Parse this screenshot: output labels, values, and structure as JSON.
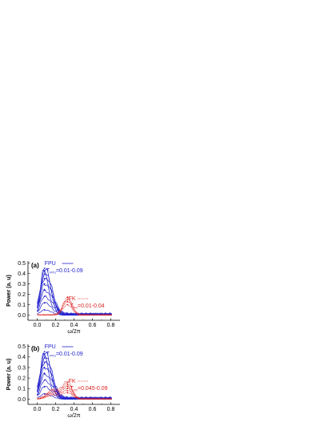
{
  "chart_data": [
    {
      "type": "line",
      "panel": "(a)",
      "xlabel": "ω/2π",
      "ylabel": "Power (a. u)",
      "xlim": [
        -0.1,
        0.9
      ],
      "ylim": [
        -0.05,
        0.52
      ],
      "xticks": [
        "0.0",
        "0.2",
        "0.4",
        "0.6",
        "0.8"
      ],
      "yticks": [
        "0.0",
        "0.1",
        "0.2",
        "0.3",
        "0.4",
        "0.5"
      ],
      "legend": [
        {
          "label": "FPU",
          "range_prefix": "T",
          "range_sub": "FPU",
          "range": "=0.01-0.09",
          "color": "#2222cc",
          "style": "solid"
        },
        {
          "label": "FK",
          "range_prefix": "T",
          "range_sub": "FK",
          "range": "=0.01-0.04",
          "color": "#dd2222",
          "style": "dotted"
        }
      ],
      "series": [
        {
          "group": "FPU",
          "color": "#2222cc",
          "peak_x": 0.08,
          "heights": [
            0.05,
            0.12,
            0.18,
            0.24,
            0.3,
            0.35,
            0.39,
            0.42,
            0.45
          ]
        },
        {
          "group": "FK",
          "color": "#dd2222",
          "peak_x": 0.33,
          "heights": [
            0.1,
            0.13,
            0.15,
            0.17
          ]
        }
      ]
    },
    {
      "type": "line",
      "panel": "(b)",
      "xlabel": "ω/2π",
      "ylabel": "Power (a. u)",
      "xlim": [
        -0.1,
        0.9
      ],
      "ylim": [
        -0.05,
        0.52
      ],
      "xticks": [
        "0.0",
        "0.2",
        "0.4",
        "0.6",
        "0.8"
      ],
      "yticks": [
        "0.0",
        "0.1",
        "0.2",
        "0.3",
        "0.4",
        "0.5"
      ],
      "legend": [
        {
          "label": "FPU",
          "range_prefix": "T",
          "range_sub": "FPU",
          "range": "=0.01-0.09",
          "color": "#2222cc",
          "style": "solid"
        },
        {
          "label": "FK",
          "range_prefix": "T",
          "range_sub": "FK",
          "range": "=0.045-0.09",
          "color": "#dd2222",
          "style": "dotted"
        }
      ],
      "series": [
        {
          "group": "FPU",
          "color": "#2222cc",
          "peak_x": 0.08,
          "heights": [
            0.05,
            0.12,
            0.18,
            0.24,
            0.3,
            0.35,
            0.39,
            0.42,
            0.45
          ]
        },
        {
          "group": "FK",
          "color": "#dd2222",
          "peak_x": 0.33,
          "heights": [
            0.06,
            0.08,
            0.1,
            0.12,
            0.14,
            0.16
          ]
        }
      ]
    }
  ]
}
